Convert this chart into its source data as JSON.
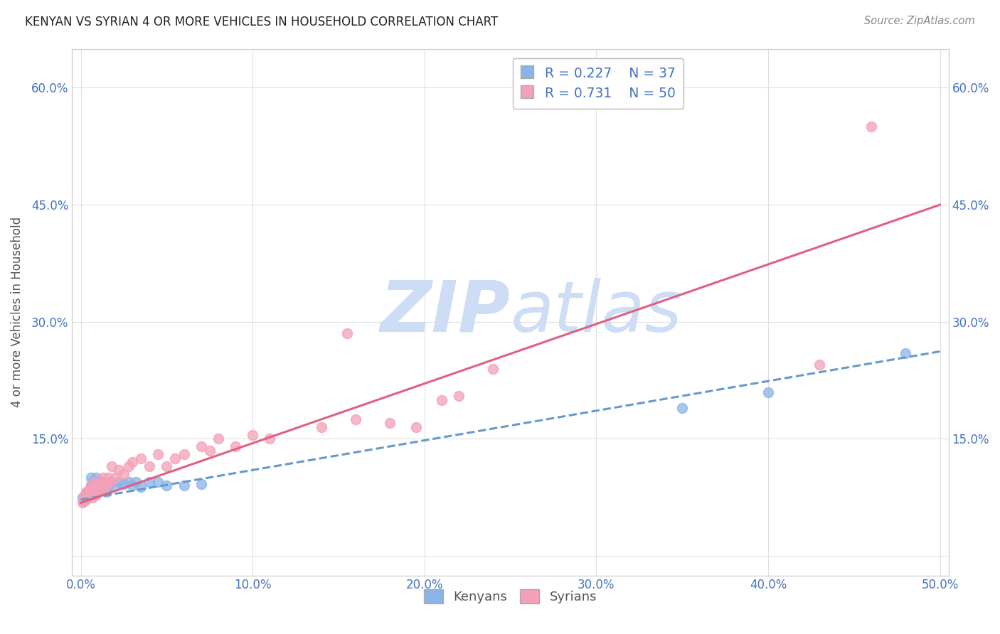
{
  "title": "KENYAN VS SYRIAN 4 OR MORE VEHICLES IN HOUSEHOLD CORRELATION CHART",
  "source": "Source: ZipAtlas.com",
  "ylabel": "4 or more Vehicles in Household",
  "xlim": [
    -0.005,
    0.505
  ],
  "ylim": [
    -0.025,
    0.65
  ],
  "xticks": [
    0.0,
    0.1,
    0.2,
    0.3,
    0.4,
    0.5
  ],
  "yticks": [
    0.0,
    0.15,
    0.3,
    0.45,
    0.6
  ],
  "xticklabels": [
    "0.0%",
    "10.0%",
    "20.0%",
    "30.0%",
    "40.0%",
    "50.0%"
  ],
  "yticklabels": [
    "",
    "15.0%",
    "30.0%",
    "45.0%",
    "60.0%"
  ],
  "kenyan_color": "#8ab4e8",
  "syrian_color": "#f4a0b8",
  "kenyan_line_color": "#6699cc",
  "syrian_line_color": "#e06080",
  "kenyan_R": 0.227,
  "kenyan_N": 37,
  "syrian_R": 0.731,
  "syrian_N": 50,
  "legend_label_kenyan": "Kenyans",
  "legend_label_syrian": "Syrians",
  "watermark_zip": "ZIP",
  "watermark_atlas": "atlas",
  "watermark_color": "#ccddf5",
  "kenyan_scatter_x": [
    0.001,
    0.002,
    0.003,
    0.004,
    0.005,
    0.006,
    0.006,
    0.007,
    0.007,
    0.008,
    0.008,
    0.009,
    0.009,
    0.01,
    0.01,
    0.011,
    0.012,
    0.013,
    0.014,
    0.015,
    0.016,
    0.018,
    0.02,
    0.022,
    0.025,
    0.028,
    0.03,
    0.032,
    0.035,
    0.04,
    0.045,
    0.05,
    0.06,
    0.07,
    0.35,
    0.4,
    0.48
  ],
  "kenyan_scatter_y": [
    0.075,
    0.07,
    0.08,
    0.075,
    0.085,
    0.09,
    0.1,
    0.082,
    0.095,
    0.078,
    0.088,
    0.092,
    0.1,
    0.085,
    0.095,
    0.09,
    0.095,
    0.088,
    0.092,
    0.082,
    0.09,
    0.095,
    0.09,
    0.095,
    0.092,
    0.095,
    0.09,
    0.095,
    0.088,
    0.095,
    0.095,
    0.09,
    0.09,
    0.092,
    0.19,
    0.21,
    0.26
  ],
  "kenyan_line_x": [
    0.0,
    0.5
  ],
  "kenyan_line_y": [
    0.072,
    0.262
  ],
  "syrian_scatter_x": [
    0.001,
    0.002,
    0.003,
    0.003,
    0.004,
    0.005,
    0.006,
    0.006,
    0.007,
    0.007,
    0.008,
    0.008,
    0.009,
    0.01,
    0.01,
    0.011,
    0.012,
    0.013,
    0.014,
    0.015,
    0.016,
    0.017,
    0.018,
    0.02,
    0.022,
    0.025,
    0.028,
    0.03,
    0.035,
    0.04,
    0.045,
    0.05,
    0.055,
    0.06,
    0.07,
    0.075,
    0.08,
    0.09,
    0.1,
    0.11,
    0.14,
    0.155,
    0.16,
    0.18,
    0.195,
    0.21,
    0.22,
    0.24,
    0.43,
    0.46
  ],
  "syrian_scatter_y": [
    0.068,
    0.075,
    0.072,
    0.082,
    0.078,
    0.085,
    0.08,
    0.09,
    0.075,
    0.088,
    0.082,
    0.095,
    0.078,
    0.085,
    0.092,
    0.09,
    0.095,
    0.1,
    0.088,
    0.092,
    0.1,
    0.095,
    0.115,
    0.1,
    0.11,
    0.105,
    0.115,
    0.12,
    0.125,
    0.115,
    0.13,
    0.115,
    0.125,
    0.13,
    0.14,
    0.135,
    0.15,
    0.14,
    0.155,
    0.15,
    0.165,
    0.285,
    0.175,
    0.17,
    0.165,
    0.2,
    0.205,
    0.24,
    0.245,
    0.55
  ],
  "syrian_line_x": [
    0.0,
    0.5
  ],
  "syrian_line_y": [
    0.068,
    0.45
  ],
  "background_color": "#ffffff",
  "grid_color": "#e0e0e0",
  "tick_color": "#4472c4",
  "title_color": "#222222",
  "source_color": "#888888"
}
